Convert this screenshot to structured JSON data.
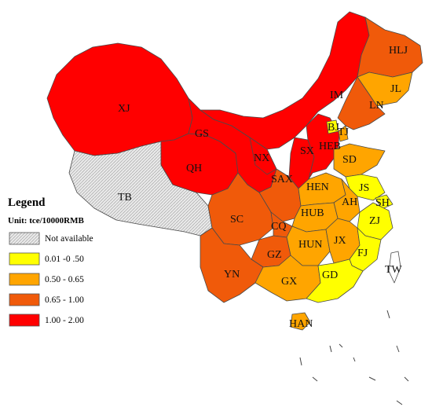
{
  "colors": {
    "not_available": "#e6e6e6",
    "low": "#ffff00",
    "mid": "#ffa500",
    "high": "#f05a0a",
    "top": "#ff0000",
    "border": "#4a4a4a"
  },
  "legend": {
    "title": "Legend",
    "unit": "Unit:  tce/10000RMB",
    "items": [
      {
        "label": "Not available",
        "class": "na"
      },
      {
        "label": "0.01 -0 .50",
        "class": "low"
      },
      {
        "label": "0.50 - 0.65",
        "class": "mid"
      },
      {
        "label": "0.65 - 1.00",
        "class": "high"
      },
      {
        "label": "1.00 - 2.00",
        "class": "top"
      }
    ]
  },
  "provinces": [
    {
      "code": "XJ",
      "class": "top"
    },
    {
      "code": "TB",
      "class": "na"
    },
    {
      "code": "QH",
      "class": "top"
    },
    {
      "code": "GS",
      "class": "top"
    },
    {
      "code": "IM",
      "class": "top"
    },
    {
      "code": "NX",
      "class": "top"
    },
    {
      "code": "SX",
      "class": "top"
    },
    {
      "code": "HEB",
      "class": "top"
    },
    {
      "code": "BJ",
      "class": "low"
    },
    {
      "code": "TJ",
      "class": "mid"
    },
    {
      "code": "HLJ",
      "class": "high"
    },
    {
      "code": "JL",
      "class": "mid"
    },
    {
      "code": "LN",
      "class": "high"
    },
    {
      "code": "SD",
      "class": "mid"
    },
    {
      "code": "SAX",
      "class": "high"
    },
    {
      "code": "HEN",
      "class": "mid"
    },
    {
      "code": "JS",
      "class": "low"
    },
    {
      "code": "SH",
      "class": "low"
    },
    {
      "code": "AH",
      "class": "mid"
    },
    {
      "code": "HUB",
      "class": "mid"
    },
    {
      "code": "ZJ",
      "class": "low"
    },
    {
      "code": "SC",
      "class": "high"
    },
    {
      "code": "CQ",
      "class": "high"
    },
    {
      "code": "HUN",
      "class": "mid"
    },
    {
      "code": "JX",
      "class": "mid"
    },
    {
      "code": "FJ",
      "class": "low"
    },
    {
      "code": "GZ",
      "class": "high"
    },
    {
      "code": "YN",
      "class": "high"
    },
    {
      "code": "GX",
      "class": "mid"
    },
    {
      "code": "GD",
      "class": "low"
    },
    {
      "code": "HAN",
      "class": "mid"
    },
    {
      "code": "TW",
      "class": "none"
    }
  ]
}
